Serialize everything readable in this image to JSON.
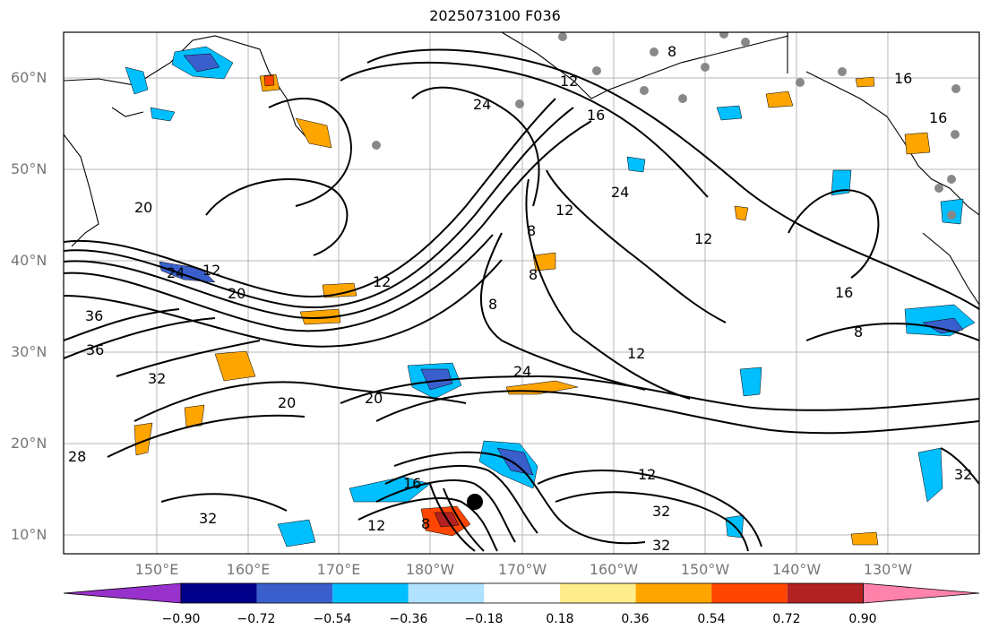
{
  "title": "2025073100 F036",
  "lat_labels": [
    "60°N",
    "50°N",
    "40°N",
    "30°N",
    "20°N",
    "10°N"
  ],
  "lon_labels": [
    "150°E",
    "160°E",
    "170°E",
    "180°W",
    "170°W",
    "160°W",
    "150°W",
    "140°W",
    "130°W"
  ],
  "contour_labels": [
    "8",
    "12",
    "16",
    "16",
    "16",
    "24",
    "12",
    "24",
    "20",
    "12",
    "20",
    "24",
    "12",
    "8",
    "8",
    "8",
    "12",
    "8",
    "16",
    "12",
    "24",
    "20",
    "20",
    "36",
    "36",
    "32",
    "28",
    "16",
    "12",
    "8",
    "32",
    "12",
    "32",
    "32",
    "32"
  ],
  "colorbar": {
    "ticks": [
      "−0.90",
      "−0.72",
      "−0.54",
      "−0.36",
      "−0.18",
      "0.18",
      "0.36",
      "0.54",
      "0.72",
      "0.90"
    ],
    "colors": [
      "#9932CC",
      "#00008B",
      "#3A5FCD",
      "#00BFFF",
      "#B0E2FF",
      "#FFFFFF",
      "#FFEC8B",
      "#FFA500",
      "#FF4500",
      "#B22222",
      "#FF82AB"
    ]
  }
}
